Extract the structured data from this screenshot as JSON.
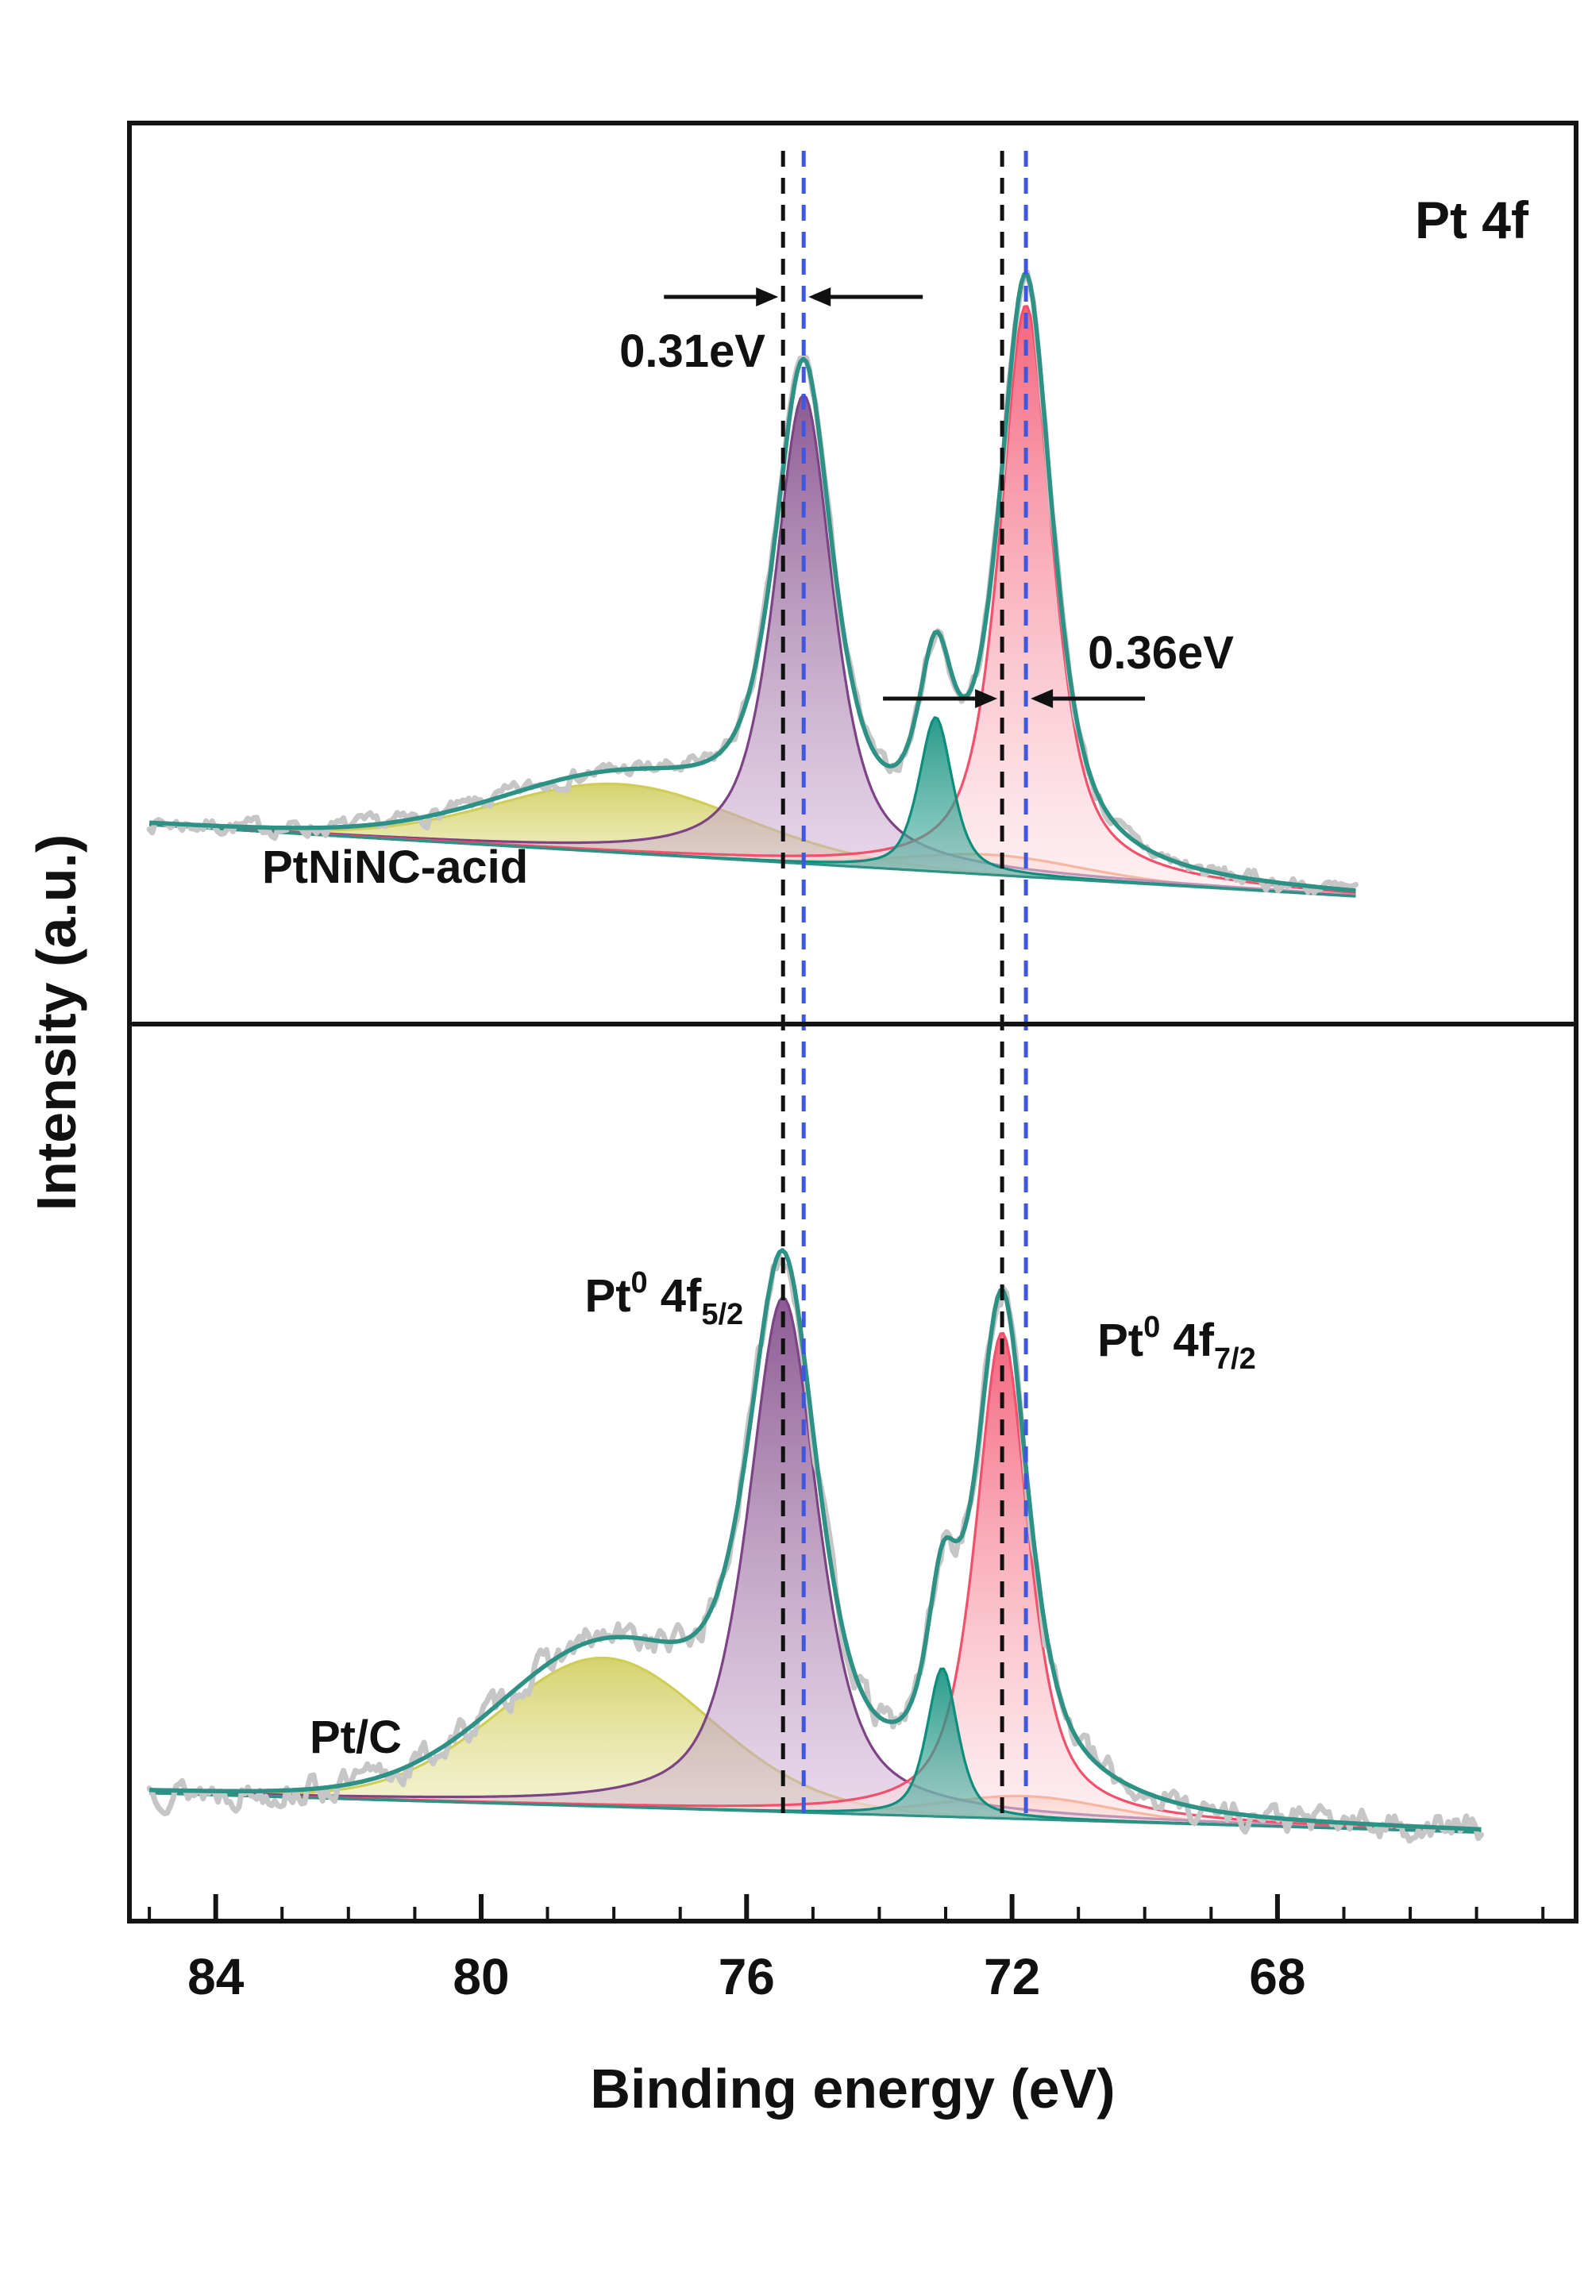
{
  "labels": {
    "corner": "Pt 4f",
    "panel_top": "PtNiNC-acid",
    "panel_bottom": "Pt/C",
    "shift_top": "0.31eV",
    "shift_bottom": "0.36eV",
    "xlabel": "Binding energy (eV)",
    "ylabel": "Intensity (a.u.)"
  },
  "colors": {
    "frame": "#141414",
    "envelope": "#2e9185",
    "raw": "#c6c6c6",
    "baseline": "#2e9185",
    "guide_black": "#111111",
    "guide_blue": "#3f57de",
    "purple_dark": "#7c4484",
    "purple_light": "#d5b8d8",
    "pink_dark": "#f2506b",
    "pink_light": "#fde3e8",
    "teal_dark": "#0d8d7b",
    "teal_light": "#52b4a5",
    "yellow_dark": "#cfcd58",
    "yellow_light": "#efedbb",
    "orange_dark": "#ef8f5e",
    "orange_light": "#f8c9ad"
  },
  "chart_data": {
    "type": "area",
    "title": "Pt 4f",
    "xlabel": "Binding energy (eV)",
    "ylabel": "Intensity (a.u.)",
    "x_range": [
      85.3,
      63.5
    ],
    "x_axis_reversed": true,
    "x_ticks": [
      84,
      80,
      76,
      72,
      68
    ],
    "minor_tick_step_eV": 1,
    "grid": false,
    "guide_lines": {
      "black_eV": [
        75.45,
        72.15
      ],
      "blue_eV": [
        75.14,
        71.79
      ],
      "shift_4f52_eV": 0.31,
      "shift_4f72_eV": 0.36
    },
    "peak_labels": [
      {
        "base": "Pt",
        "sup": "0",
        "mid": " 4f",
        "sub": "5/2"
      },
      {
        "base": "Pt",
        "sup": "0",
        "mid": " 4f",
        "sub": "7/2"
      }
    ],
    "panels": [
      {
        "sample": "PtNiNC-acid",
        "noise": 0.012,
        "baseline": {
          "left": 0.17,
          "right": 0.02
        },
        "peaks": [
          {
            "name": "carbon-background-hump",
            "color": "yellow",
            "center": 77.9,
            "amplitude": 0.12,
            "fwhm": 4.4,
            "eta": 0.1
          },
          {
            "name": "pt-oxidized-broad",
            "color": "orange",
            "center": 72.3,
            "amplitude": 0.035,
            "fwhm": 3.2,
            "eta": 0.2
          },
          {
            "name": "pt0-4f5-2",
            "color": "purple",
            "center": 75.14,
            "amplitude": 0.82,
            "fwhm": 1.05,
            "eta": 0.7
          },
          {
            "name": "pt0-4f7-2",
            "color": "pink",
            "center": 71.79,
            "amplitude": 1.0,
            "fwhm": 0.95,
            "eta": 0.7
          },
          {
            "name": "pt2-satellite",
            "color": "teal",
            "center": 73.15,
            "amplitude": 0.27,
            "fwhm": 0.6,
            "eta": 0.6
          }
        ]
      },
      {
        "sample": "Pt/C",
        "noise": 0.021,
        "baseline": {
          "left": 0.1,
          "right": 0.025
        },
        "peaks": [
          {
            "name": "carbon-background-hump",
            "color": "yellow",
            "center": 78.15,
            "amplitude": 0.26,
            "fwhm": 3.8,
            "eta": 0.1
          },
          {
            "name": "pt-oxidized-broad",
            "color": "orange",
            "center": 71.8,
            "amplitude": 0.04,
            "fwhm": 3.0,
            "eta": 0.2
          },
          {
            "name": "pt0-4f5-2",
            "color": "purple",
            "center": 75.45,
            "amplitude": 0.9,
            "fwhm": 1.25,
            "eta": 0.65
          },
          {
            "name": "pt0-4f7-2",
            "color": "pink",
            "center": 72.15,
            "amplitude": 0.85,
            "fwhm": 0.95,
            "eta": 0.7
          },
          {
            "name": "pt2-satellite",
            "color": "teal",
            "center": 73.05,
            "amplitude": 0.26,
            "fwhm": 0.55,
            "eta": 0.6
          }
        ]
      }
    ]
  }
}
